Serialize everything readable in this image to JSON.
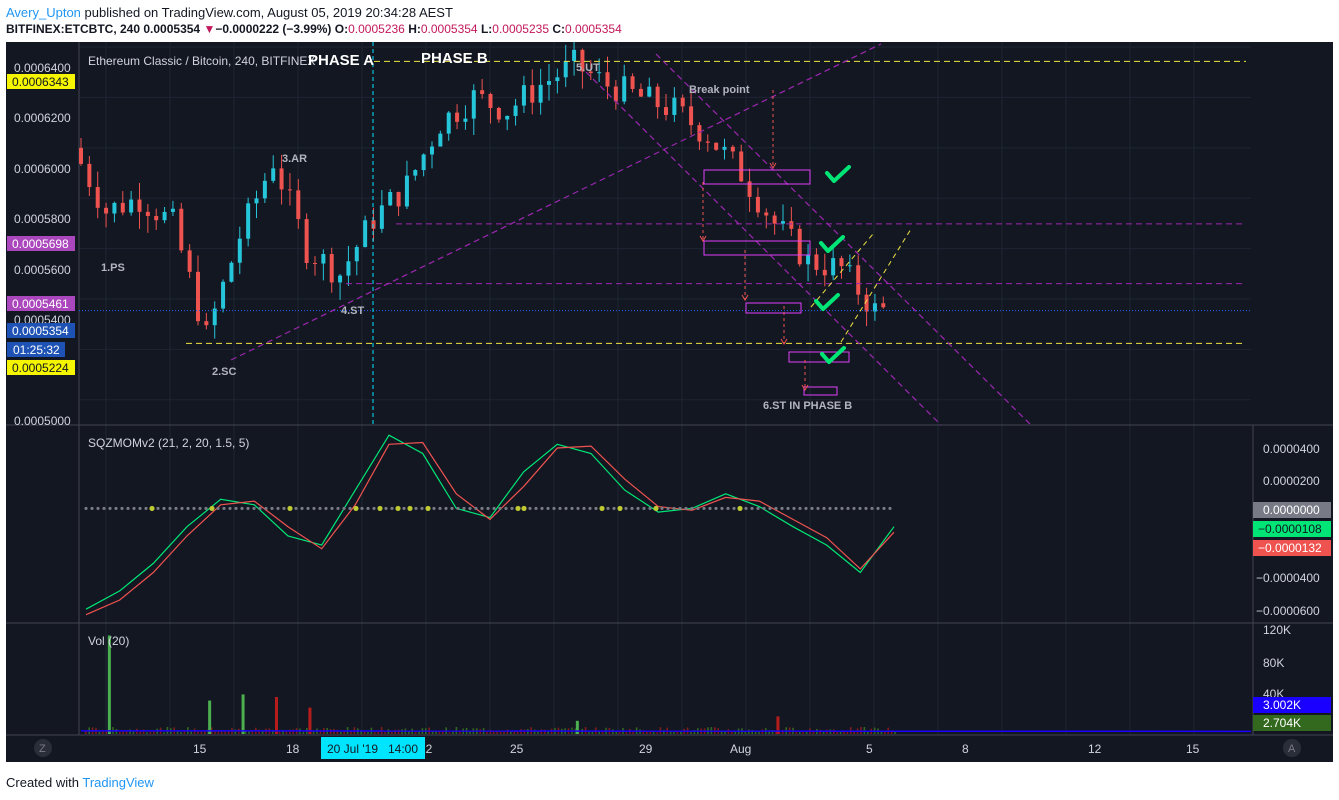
{
  "header": {
    "author": "Avery_Upton",
    "published_text": "published on TradingView.com, August 05, 2019 20:34:28 AEST",
    "symbol_line": "BITFINEX:ETCBTC, 240",
    "last": "0.0005354",
    "change_arrow": "▼",
    "change": "−0.0000222 (−3.99%)",
    "o_label": "O:",
    "o": "0.0005236",
    "h_label": "H:",
    "h": "0.0005354",
    "l_label": "L:",
    "l": "0.0005235",
    "c_label": "C:",
    "c": "0.0005354"
  },
  "footer": {
    "created_with": "Created with",
    "brand": "TradingView"
  },
  "colors": {
    "background": "#131722",
    "up": "#26c6da",
    "down": "#ef5350",
    "grid": "#1e2433",
    "text": "#d1d4dc",
    "yellow_level": "#f0e442",
    "purple": "#9c27b0",
    "magenta": "#e040fb",
    "check": "#00e676"
  },
  "main_pane": {
    "legend": "Ethereum Classic / Bitcoin, 240, BITFINEX",
    "phase_a": "PHASE A",
    "phase_b": "PHASE B",
    "labels": [
      "1.PS",
      "2.SC",
      "3.AR",
      "4.ST",
      "5.UT",
      "Break point",
      "6.ST IN PHASE B"
    ],
    "y_ticks": [
      "0.0006400",
      "0.0006200",
      "0.0006000",
      "0.0005800",
      "0.0005600",
      "0.0005400",
      "0.0005000"
    ],
    "price_tags": {
      "p1": "0.0006343",
      "p2": "0.0005698",
      "p3": "0.0005461",
      "p4": "0.0005354",
      "timer": "01:25:32",
      "p5": "0.0005224"
    }
  },
  "indicator_pane": {
    "legend": "SQZMOMv2 (21, 2, 20, 1.5, 5)",
    "y_ticks": [
      "0.0000400",
      "0.0000200",
      "−0.0000400",
      "−0.0000600"
    ],
    "tags": {
      "zero": "0.0000000",
      "green": "−0.0000108",
      "red": "−0.0000132"
    }
  },
  "volume_pane": {
    "legend": "Vol (20)",
    "y_ticks": [
      "120K",
      "80K",
      "40K"
    ],
    "tags": {
      "blue": "3.002K",
      "green": "2.704K"
    }
  },
  "time_axis": {
    "ticks": [
      "15",
      "18",
      "22",
      "25",
      "29",
      "Aug",
      "5",
      "8",
      "12",
      "15"
    ],
    "crosshair_label": "20 Jul '19   14:00",
    "left_button": "Z",
    "right_button": "A"
  },
  "chart_data": {
    "type": "candlestick",
    "symbol": "BITFINEX:ETCBTC",
    "interval": "240",
    "x_range": [
      "2019-07-12",
      "2019-08-16"
    ],
    "ylim": [
      0.00049,
      0.000642
    ],
    "levels": [
      0.0006343,
      0.0005698,
      0.0005461,
      0.0005354,
      0.0005224
    ],
    "close_path": [
      {
        "date": "2019-07-12",
        "close": 0.0006
      },
      {
        "date": "2019-07-13",
        "close": 0.000575
      },
      {
        "date": "2019-07-14",
        "close": 0.00058
      },
      {
        "date": "2019-07-15",
        "close": 0.00057
      },
      {
        "date": "2019-07-16",
        "close": 0.000525
      },
      {
        "date": "2019-07-17",
        "close": 0.000565
      },
      {
        "date": "2019-07-18",
        "close": 0.000595
      },
      {
        "date": "2019-07-19",
        "close": 0.00056
      },
      {
        "date": "2019-07-20",
        "close": 0.00055
      },
      {
        "date": "2019-07-21",
        "close": 0.000572
      },
      {
        "date": "2019-07-22",
        "close": 0.000585
      },
      {
        "date": "2019-07-23",
        "close": 0.00061
      },
      {
        "date": "2019-07-24",
        "close": 0.00062
      },
      {
        "date": "2019-07-25",
        "close": 0.000615
      },
      {
        "date": "2019-07-26",
        "close": 0.000625
      },
      {
        "date": "2019-07-27",
        "close": 0.000633
      },
      {
        "date": "2019-07-28",
        "close": 0.000625
      },
      {
        "date": "2019-07-29",
        "close": 0.00062
      },
      {
        "date": "2019-07-30",
        "close": 0.000615
      },
      {
        "date": "2019-07-31",
        "close": 0.000605
      },
      {
        "date": "2019-08-01",
        "close": 0.00059
      },
      {
        "date": "2019-08-02",
        "close": 0.00057
      },
      {
        "date": "2019-08-03",
        "close": 0.000555
      },
      {
        "date": "2019-08-04",
        "close": 0.000552
      },
      {
        "date": "2019-08-05",
        "close": 0.0005354
      }
    ],
    "indicator_ylim": [
      -6.2e-05,
      4.5e-05
    ],
    "indicator_series": [
      {
        "name": "SQZMOMv2 fast",
        "x": [
          0,
          1,
          2,
          3,
          4,
          5,
          6,
          7,
          8,
          9,
          10,
          11,
          12,
          13,
          14,
          15,
          16,
          17,
          18,
          19,
          20,
          21,
          22,
          23,
          24
        ],
        "values": [
          -5.5e-05,
          -4.5e-05,
          -3e-05,
          -1e-05,
          5e-06,
          2e-06,
          -1.5e-05,
          -2e-05,
          1e-05,
          4e-05,
          3e-05,
          0.0,
          -5e-06,
          2e-05,
          3.5e-05,
          3e-05,
          1e-05,
          -2e-06,
          0.0,
          8e-06,
          1e-06,
          -1e-05,
          -2e-05,
          -3.5e-05,
          -1e-05
        ]
      },
      {
        "name": "SQZMOMv2 slow",
        "x": [
          0,
          1,
          2,
          3,
          4,
          5,
          6,
          7,
          8,
          9,
          10,
          11,
          12,
          13,
          14,
          15,
          16,
          17,
          18,
          19,
          20,
          21,
          22,
          23,
          24
        ],
        "values": [
          -5.8e-05,
          -5e-05,
          -3.5e-05,
          -1.5e-05,
          2e-06,
          4e-06,
          -1e-05,
          -2.2e-05,
          2e-06,
          3.5e-05,
          3.6e-05,
          8e-06,
          -6e-06,
          1.2e-05,
          3.3e-05,
          3.4e-05,
          1.6e-05,
          1e-06,
          -1e-06,
          6e-06,
          4e-06,
          -6e-06,
          -1.6e-05,
          -3.3e-05,
          -1.3e-05
        ]
      }
    ],
    "volume_ylim": [
      0,
      125000
    ],
    "volume_spikes": [
      {
        "date": "2019-07-14",
        "value": 112000,
        "dir": "up"
      },
      {
        "date": "2019-07-17",
        "value": 38000,
        "dir": "up"
      },
      {
        "date": "2019-07-18",
        "value": 45000,
        "dir": "up"
      },
      {
        "date": "2019-07-19",
        "value": 42000,
        "dir": "down"
      },
      {
        "date": "2019-07-20",
        "value": 30000,
        "dir": "down"
      },
      {
        "date": "2019-08-03",
        "value": 20000,
        "dir": "down"
      },
      {
        "date": "2019-07-28",
        "value": 15000,
        "dir": "up"
      }
    ]
  }
}
